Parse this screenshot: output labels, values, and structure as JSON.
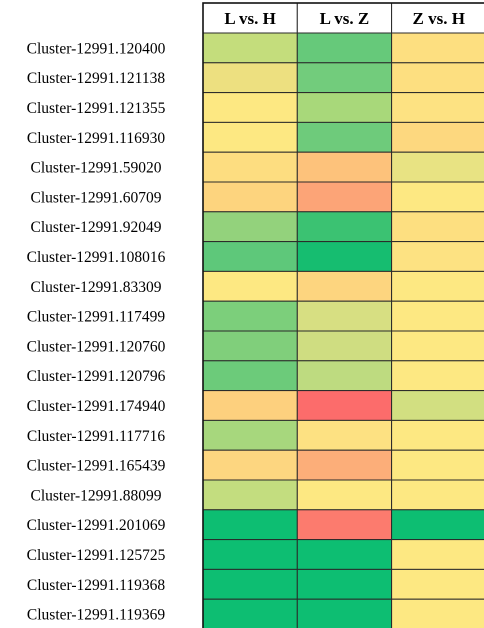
{
  "chart_data": {
    "type": "heatmap",
    "title": "",
    "columns": [
      "L vs. H",
      "L vs. Z",
      "Z vs. H"
    ],
    "rows": [
      {
        "label": "Cluster-12991.120400",
        "colors": [
          "#c4dd7c",
          "#66c97a",
          "#fddf80"
        ]
      },
      {
        "label": "Cluster-12991.121138",
        "colors": [
          "#ede080",
          "#72cc7c",
          "#fddf80"
        ]
      },
      {
        "label": "Cluster-12991.121355",
        "colors": [
          "#fde882",
          "#a8d87a",
          "#fde282"
        ]
      },
      {
        "label": "Cluster-12991.116930",
        "colors": [
          "#fde882",
          "#6ecb7b",
          "#fdd87f"
        ]
      },
      {
        "label": "Cluster-12991.59020",
        "colors": [
          "#fddd80",
          "#fdc27b",
          "#e8e383"
        ]
      },
      {
        "label": "Cluster-12991.60709",
        "colors": [
          "#fdd47e",
          "#fca477",
          "#fde882"
        ]
      },
      {
        "label": "Cluster-12991.92049",
        "colors": [
          "#93d27c",
          "#3bc272",
          "#fddf80"
        ]
      },
      {
        "label": "Cluster-12991.108016",
        "colors": [
          "#5ec87a",
          "#16bd70",
          "#fde282"
        ]
      },
      {
        "label": "Cluster-12991.83309",
        "colors": [
          "#fde882",
          "#fdd57f",
          "#fde882"
        ]
      },
      {
        "label": "Cluster-12991.117499",
        "colors": [
          "#7ccf7b",
          "#d7df82",
          "#fde882"
        ]
      },
      {
        "label": "Cluster-12991.120760",
        "colors": [
          "#80cf7b",
          "#cfdd81",
          "#fde882"
        ]
      },
      {
        "label": "Cluster-12991.120796",
        "colors": [
          "#6ccb7a",
          "#bedb80",
          "#fde882"
        ]
      },
      {
        "label": "Cluster-12991.174940",
        "colors": [
          "#fdd07e",
          "#fc6c6b",
          "#d2df81"
        ]
      },
      {
        "label": "Cluster-12991.117716",
        "colors": [
          "#a7d77d",
          "#fde182",
          "#fde882"
        ]
      },
      {
        "label": "Cluster-12991.165439",
        "colors": [
          "#fdd680",
          "#fcae79",
          "#fde882"
        ]
      },
      {
        "label": "Cluster-12991.88099",
        "colors": [
          "#c3dd7f",
          "#fde882",
          "#fde882"
        ]
      },
      {
        "label": "Cluster-12991.201069",
        "colors": [
          "#0dbe72",
          "#fc7b6e",
          "#0dbe72"
        ]
      },
      {
        "label": "Cluster-12991.125725",
        "colors": [
          "#0dbe72",
          "#0dbe72",
          "#fde882"
        ]
      },
      {
        "label": "Cluster-12991.119368",
        "colors": [
          "#0dbe72",
          "#0dbe72",
          "#fde882"
        ]
      },
      {
        "label": "Cluster-12991.119369",
        "colors": [
          "#0dbe72",
          "#0dbe72",
          "#fde882"
        ]
      }
    ],
    "colors": {
      "low": "#fc6c6b",
      "mid": "#fde882",
      "high": "#0dbe72"
    },
    "grid": true,
    "legend": "none"
  }
}
